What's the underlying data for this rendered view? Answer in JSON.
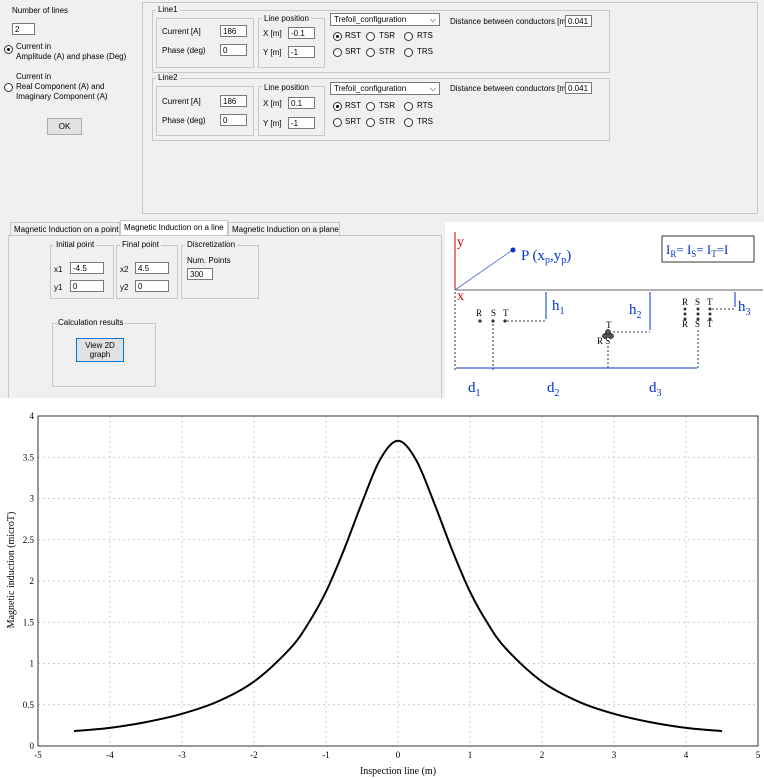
{
  "left_panel": {
    "num_lines_label": "Number of lines",
    "num_lines_value": "2",
    "radio_amp_phase": "Current in\nAmplitude (A) and phase (Deg)",
    "radio_real_imag": "Current in\nReal Component (A) and\nImaginary Component (A)",
    "ok_label": "OK"
  },
  "lines": [
    {
      "title": "Line1",
      "current_label": "Current [A]",
      "current_value": "186",
      "phase_label": "Phase (deg)",
      "phase_value": "0",
      "position_label": "Line position",
      "x_label": "X [m]",
      "x_value": "-0.1",
      "y_label": "Y [m]",
      "y_value": "-1",
      "config": "Trefoil_configuration",
      "phases": [
        "RST",
        "TSR",
        "RTS",
        "SRT",
        "STR",
        "TRS"
      ],
      "selected_phase": "RST",
      "distance_label": "Distance between conductors [m]",
      "distance_value": "0.041"
    },
    {
      "title": "Line2",
      "current_label": "Current [A]",
      "current_value": "186",
      "phase_label": "Phase (deg)",
      "phase_value": "0",
      "position_label": "Line position",
      "x_label": "X [m]",
      "x_value": "0.1",
      "y_label": "Y [m]",
      "y_value": "-1",
      "config": "Trefoil_configuration",
      "phases": [
        "RST",
        "TSR",
        "RTS",
        "SRT",
        "STR",
        "TRS"
      ],
      "selected_phase": "RST",
      "distance_label": "Distance between conductors [m]",
      "distance_value": "0.041"
    }
  ],
  "tabs": [
    "Magnetic Induction on a point",
    "Magnetic Induction on a line",
    "Magnetic Induction on a plane"
  ],
  "active_tab": "Magnetic Induction on a line",
  "line_tab": {
    "initial_point_label": "Initial point",
    "x1_label": "x1",
    "x1_value": "-4.5",
    "y1_label": "y1",
    "y1_value": "0",
    "final_point_label": "Final point",
    "x2_label": "x2",
    "x2_value": "4.5",
    "y2_label": "y2",
    "y2_value": "0",
    "discretization_label": "Discretization",
    "num_points_label": "Num. Points",
    "num_points_value": "300",
    "calc_results_label": "Calculation results",
    "view_button": "View 2D\ngraph"
  },
  "diagram": {
    "y_axis": "y",
    "x_axis": "x",
    "point": "P (xp,yp)",
    "equation": "IR= IS= IT=I",
    "h1": "h1",
    "h2": "h2",
    "h3": "h3",
    "d1": "d1",
    "d2": "d2",
    "d3": "d3",
    "flat_labels": [
      "R",
      "S",
      "T"
    ],
    "trefoil_top": "T",
    "trefoil_bottom": "R S",
    "vertical_top": [
      "R",
      "S",
      "T"
    ],
    "vertical_bottom": [
      "R",
      "S",
      "T"
    ],
    "blue": "#0033cc",
    "red": "#cc0000"
  },
  "chart_data": {
    "type": "line",
    "xlabel": "Inspection line (m)",
    "ylabel": "Magnetic induction  (microT)",
    "xlim": [
      -5,
      5
    ],
    "ylim": [
      0,
      4
    ],
    "xticks": [
      -5,
      -4,
      -3,
      -2,
      -1,
      0,
      1,
      2,
      3,
      4,
      5
    ],
    "yticks": [
      0,
      0.5,
      1,
      1.5,
      2,
      2.5,
      3,
      3.5,
      4
    ],
    "xtick_labels": [
      "-5",
      "-4",
      "-3",
      "-2",
      "-1",
      "0",
      "1",
      "2",
      "3",
      "4",
      "5"
    ],
    "ytick_labels": [
      "0",
      "0.5",
      "1",
      "1.5",
      "2",
      "2.5",
      "3",
      "3.5",
      "4"
    ],
    "grid": true,
    "series": [
      {
        "x": [
          -4.5,
          -4.0,
          -3.5,
          -3.0,
          -2.5,
          -2.0,
          -1.5,
          -1.25,
          -1.0,
          -0.75,
          -0.5,
          -0.25,
          0,
          0.25,
          0.5,
          0.75,
          1.0,
          1.25,
          1.5,
          2.0,
          2.5,
          3.0,
          3.5,
          4.0,
          4.5
        ],
        "y": [
          0.18,
          0.22,
          0.29,
          0.39,
          0.54,
          0.78,
          1.18,
          1.48,
          1.87,
          2.38,
          2.95,
          3.47,
          3.7,
          3.47,
          2.95,
          2.38,
          1.87,
          1.48,
          1.18,
          0.78,
          0.54,
          0.39,
          0.29,
          0.22,
          0.18
        ]
      }
    ]
  }
}
